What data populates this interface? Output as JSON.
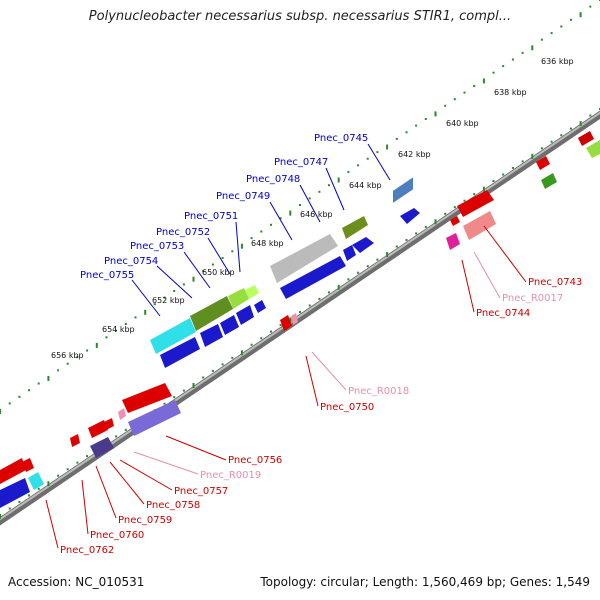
{
  "title": "Polynucleobacter necessarius subsp. necessarius STIR1, compl...",
  "footer": {
    "accession": "Accession: NC_010531",
    "summary": "Topology: circular; Length: 1,560,469 bp; Genes: 1,549"
  },
  "tick_labels": [
    "636 kbp",
    "638 kbp",
    "640 kbp",
    "642 kbp",
    "644 kbp",
    "646 kbp",
    "648 kbp",
    "650 kbp",
    "652 kbp",
    "654 kbp",
    "656 kbp"
  ],
  "colors": {
    "backbone": "#8a8a8a",
    "forward_label": "#0000cc",
    "reverse_label": "#cc0000",
    "rna_label": "#e58fb0",
    "dots": "#2a8a2a"
  },
  "genes_forward": [
    {
      "label": "Pnec_0745"
    },
    {
      "label": "Pnec_0747"
    },
    {
      "label": "Pnec_0748"
    },
    {
      "label": "Pnec_0749"
    },
    {
      "label": "Pnec_0751"
    },
    {
      "label": "Pnec_0752"
    },
    {
      "label": "Pnec_0753"
    },
    {
      "label": "Pnec_0754"
    },
    {
      "label": "Pnec_0755"
    }
  ],
  "genes_reverse": [
    {
      "label": "Pnec_0743"
    },
    {
      "label": "Pnec_R0017"
    },
    {
      "label": "Pnec_0744"
    },
    {
      "label": "Pnec_R0018"
    },
    {
      "label": "Pnec_0750"
    },
    {
      "label": "Pnec_0756"
    },
    {
      "label": "Pnec_R0019"
    },
    {
      "label": "Pnec_0757"
    },
    {
      "label": "Pnec_0758"
    },
    {
      "label": "Pnec_0759"
    },
    {
      "label": "Pnec_0760"
    },
    {
      "label": "Pnec_0762"
    }
  ]
}
